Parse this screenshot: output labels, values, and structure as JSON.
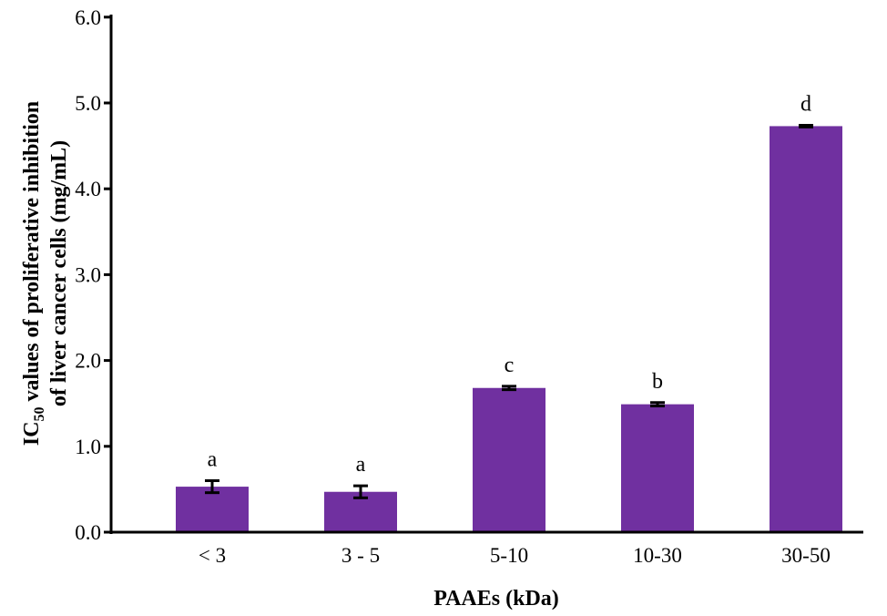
{
  "chart_data": {
    "type": "bar",
    "title": "",
    "xlabel": "PAAEs (kDa)",
    "ylabel_line1_prefix": "IC",
    "ylabel_subscript": "50",
    "ylabel_line1_rest": " values of proliferative inhibition",
    "ylabel_line2": "of liver cancer cells (mg/mL)",
    "categories": [
      "< 3",
      "3 - 5",
      "5-10",
      "10-30",
      "30-50"
    ],
    "values": [
      0.53,
      0.47,
      1.68,
      1.49,
      4.73
    ],
    "errors": [
      0.07,
      0.07,
      0.02,
      0.02,
      0.01
    ],
    "significance_letters": [
      "a",
      "a",
      "c",
      "b",
      "d"
    ],
    "ylim": [
      0,
      6
    ],
    "yticks": [
      "0.0",
      "1.0",
      "2.0",
      "3.0",
      "4.0",
      "5.0",
      "6.0"
    ],
    "grid": false,
    "bar_color": "#7030a0"
  }
}
